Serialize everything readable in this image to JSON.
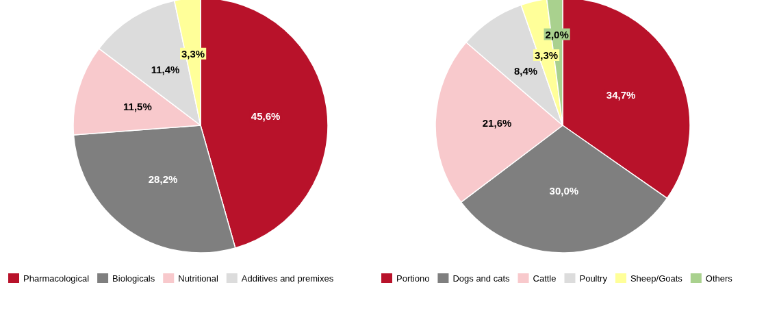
{
  "chart_data": [
    {
      "type": "pie",
      "categories": [
        "Pharmacological",
        "Biologicals",
        "Nutritional",
        "Additives and premixes",
        null
      ],
      "values": [
        45.6,
        28.2,
        11.5,
        11.4,
        3.3
      ],
      "colors": [
        "#b8122a",
        "#7f7f7f",
        "#f8c9cc",
        "#dcdcdc",
        "#ffff99"
      ],
      "value_labels": [
        "45,6%",
        "28,2%",
        "11,5%",
        "11,4%",
        "3,3%"
      ],
      "legend": "bottom"
    },
    {
      "type": "pie",
      "categories": [
        "Portiono",
        "Dogs and cats",
        "Cattle",
        "Poultry",
        "Sheep/Goats",
        "Others"
      ],
      "values": [
        34.7,
        30.0,
        21.6,
        8.4,
        3.3,
        2.0
      ],
      "colors": [
        "#b8122a",
        "#7f7f7f",
        "#f8c9cc",
        "#dcdcdc",
        "#ffff99",
        "#a9d18e"
      ],
      "value_labels": [
        "34,7%",
        "30,0%",
        "21,6%",
        "8,4%",
        "3,3%",
        "2,0%"
      ],
      "legend": "bottom"
    }
  ]
}
